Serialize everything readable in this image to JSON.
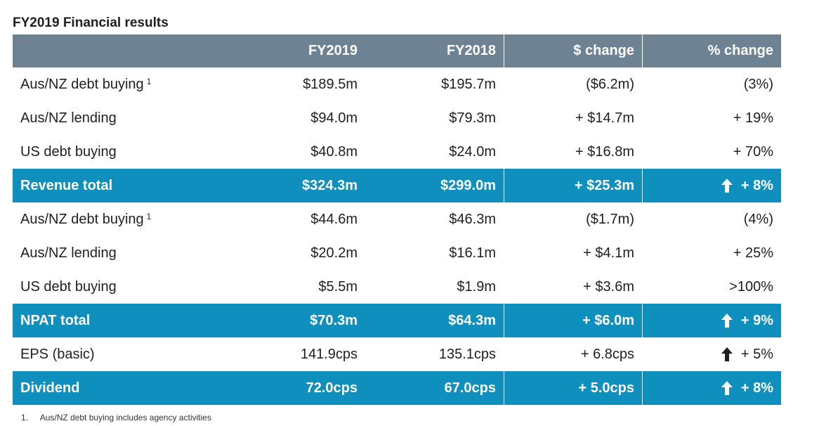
{
  "title": "FY2019 Financial results",
  "headers": [
    "",
    "FY2019",
    "FY2018",
    "$ change",
    "% change"
  ],
  "rows": [
    {
      "label": "Aus/NZ debt buying",
      "sup": "1",
      "fy2019": "$189.5m",
      "fy2018": "$195.7m",
      "change": "($6.2m)",
      "pct": "(3%)",
      "total": false,
      "arrow": false
    },
    {
      "label": "Aus/NZ lending",
      "sup": "",
      "fy2019": "$94.0m",
      "fy2018": "$79.3m",
      "change": "+ $14.7m",
      "pct": "+ 19%",
      "total": false,
      "arrow": false
    },
    {
      "label": "US debt buying",
      "sup": "",
      "fy2019": "$40.8m",
      "fy2018": "$24.0m",
      "change": "+ $16.8m",
      "pct": "+ 70%",
      "total": false,
      "arrow": false
    },
    {
      "label": "Revenue total",
      "sup": "",
      "fy2019": "$324.3m",
      "fy2018": "$299.0m",
      "change": "+ $25.3m",
      "pct": "+ 8%",
      "total": true,
      "arrow": true
    },
    {
      "label": "Aus/NZ debt buying",
      "sup": "1",
      "fy2019": "$44.6m",
      "fy2018": "$46.3m",
      "change": "($1.7m)",
      "pct": "(4%)",
      "total": false,
      "arrow": false
    },
    {
      "label": "Aus/NZ lending",
      "sup": "",
      "fy2019": "$20.2m",
      "fy2018": "$16.1m",
      "change": "+ $4.1m",
      "pct": "+ 25%",
      "total": false,
      "arrow": false
    },
    {
      "label": "US debt buying",
      "sup": "",
      "fy2019": "$5.5m",
      "fy2018": "$1.9m",
      "change": "+ $3.6m",
      "pct": ">100%",
      "total": false,
      "arrow": false
    },
    {
      "label": "NPAT total",
      "sup": "",
      "fy2019": "$70.3m",
      "fy2018": "$64.3m",
      "change": "+ $6.0m",
      "pct": "+ 9%",
      "total": true,
      "arrow": true
    },
    {
      "label": "EPS (basic)",
      "sup": "",
      "fy2019": "141.9cps",
      "fy2018": "135.1cps",
      "change": "+ 6.8cps",
      "pct": "+ 5%",
      "total": false,
      "arrow": true
    },
    {
      "label": "Dividend",
      "sup": "",
      "fy2019": "72.0cps",
      "fy2018": "67.0cps",
      "change": "+ 5.0cps",
      "pct": "+ 8%",
      "total": true,
      "arrow": true
    }
  ],
  "footnote": {
    "num": "1.",
    "text": "Aus/NZ debt buying includes agency activities"
  },
  "colors": {
    "header_bg": "#6d8293",
    "total_bg": "#0f8fbd",
    "arrow_on_total": "#ffffff",
    "arrow_on_plain": "#1f1f1f"
  },
  "icons": {
    "up_arrow": "up-arrow-icon"
  }
}
